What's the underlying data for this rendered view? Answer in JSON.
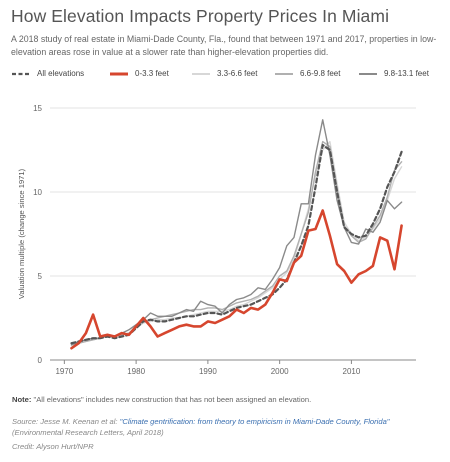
{
  "header": {
    "title": "How Elevation Impacts Property Prices In Miami",
    "subtitle": "A 2018 study of real estate in Miami-Dade County, Fla., found that between 1971 and 2017, properties in low-elevation areas rose in value at a slower rate than higher-elevation properties did."
  },
  "footer": {
    "note_label": "Note:",
    "note_text": " \"All elevations\" includes new construction that has not been assigned an elevation.",
    "source_prefix": "Source: Jesse M. Keenan et al: ",
    "source_link": "\"Climate gentrification: from theory to empiricism in Miami-Dade County, Florida\"",
    "source_suffix": "(Environmental Research Letters, April 2018)",
    "credit": "Credit: Alyson Hurt/NPR"
  },
  "colors": {
    "all": "#555555",
    "e0_3": "#d6462e",
    "e3_6": "#d7d7d7",
    "e6_9": "#b0b0b0",
    "e9_13": "#8a8a8a",
    "grid": "#e3e3e3",
    "axis": "#888888"
  },
  "chart_data": {
    "type": "line",
    "title": "",
    "xlabel": "",
    "ylabel": "Valuation multiple (change since 1971)",
    "xlim": [
      1968,
      2019
    ],
    "ylim": [
      0,
      15
    ],
    "x_ticks": [
      1970,
      1980,
      1990,
      2000,
      2010
    ],
    "y_ticks": [
      0,
      5,
      10,
      15
    ],
    "grid": "horizontal",
    "legend_position": "top",
    "x": [
      1971,
      1972,
      1973,
      1974,
      1975,
      1976,
      1977,
      1978,
      1979,
      1980,
      1981,
      1982,
      1983,
      1984,
      1985,
      1986,
      1987,
      1988,
      1989,
      1990,
      1991,
      1992,
      1993,
      1994,
      1995,
      1996,
      1997,
      1998,
      1999,
      2000,
      2001,
      2002,
      2003,
      2004,
      2005,
      2006,
      2007,
      2008,
      2009,
      2010,
      2011,
      2012,
      2013,
      2014,
      2015,
      2016,
      2017
    ],
    "series": [
      {
        "name": "All elevations",
        "key": "all",
        "style": "dashed",
        "values": [
          1.0,
          1.1,
          1.2,
          1.3,
          1.3,
          1.4,
          1.3,
          1.4,
          1.5,
          1.9,
          2.3,
          2.4,
          2.3,
          2.3,
          2.4,
          2.5,
          2.6,
          2.6,
          2.7,
          2.8,
          2.8,
          2.7,
          2.9,
          3.1,
          3.2,
          3.3,
          3.5,
          3.7,
          3.9,
          4.3,
          4.8,
          5.8,
          6.8,
          8.0,
          10.3,
          12.8,
          12.5,
          10.0,
          7.9,
          7.5,
          7.3,
          7.4,
          8.1,
          9.0,
          10.3,
          11.2,
          12.4
        ]
      },
      {
        "name": "0-3.3 feet",
        "key": "e0_3",
        "style": "solid-thick",
        "values": [
          0.7,
          1.0,
          1.6,
          2.7,
          1.4,
          1.5,
          1.4,
          1.6,
          1.5,
          2.0,
          2.5,
          2.0,
          1.4,
          1.6,
          1.8,
          2.0,
          2.1,
          2.0,
          2.0,
          2.3,
          2.2,
          2.4,
          2.6,
          3.0,
          2.8,
          3.1,
          3.0,
          3.3,
          4.0,
          4.8,
          4.7,
          5.8,
          6.2,
          7.7,
          7.8,
          8.9,
          7.4,
          5.7,
          5.3,
          4.6,
          5.1,
          5.3,
          5.6,
          7.3,
          7.1,
          5.4,
          8.0
        ]
      },
      {
        "name": "3.3-6.6 feet",
        "key": "e3_6",
        "style": "solid",
        "values": [
          0.9,
          1.0,
          1.1,
          1.2,
          1.3,
          1.4,
          1.4,
          1.5,
          1.6,
          1.9,
          2.2,
          2.3,
          2.4,
          2.4,
          2.5,
          2.5,
          2.6,
          2.7,
          2.8,
          2.9,
          2.9,
          2.9,
          3.0,
          3.2,
          3.3,
          3.5,
          3.7,
          4.0,
          4.3,
          4.8,
          5.2,
          6.0,
          7.5,
          9.0,
          11.0,
          12.5,
          13.0,
          10.5,
          8.2,
          7.5,
          7.1,
          7.3,
          7.8,
          8.4,
          9.5,
          10.8,
          11.5
        ]
      },
      {
        "name": "6.6-9.8 feet",
        "key": "e6_9",
        "style": "solid",
        "values": [
          0.9,
          1.0,
          1.1,
          1.2,
          1.3,
          1.4,
          1.4,
          1.5,
          1.6,
          2.0,
          2.3,
          2.4,
          2.5,
          2.6,
          2.7,
          2.8,
          2.9,
          3.0,
          3.0,
          3.1,
          3.1,
          3.0,
          3.2,
          3.4,
          3.5,
          3.6,
          3.8,
          4.1,
          4.4,
          5.0,
          5.3,
          6.2,
          7.5,
          8.8,
          11.2,
          13.0,
          12.7,
          10.2,
          8.0,
          7.4,
          7.0,
          7.2,
          7.9,
          8.6,
          9.7,
          11.3,
          11.8
        ]
      },
      {
        "name": "9.8-13.1 feet",
        "key": "e9_13",
        "style": "solid",
        "values": [
          0.9,
          1.1,
          1.2,
          1.3,
          1.3,
          1.5,
          1.4,
          1.6,
          1.8,
          2.1,
          2.4,
          2.8,
          2.6,
          2.6,
          2.6,
          2.8,
          3.0,
          2.9,
          3.5,
          3.3,
          3.2,
          2.8,
          3.3,
          3.6,
          3.7,
          3.9,
          4.3,
          4.2,
          4.8,
          5.5,
          6.8,
          7.3,
          9.3,
          9.3,
          12.2,
          14.3,
          12.2,
          9.5,
          7.9,
          7.0,
          6.9,
          7.8,
          7.6,
          8.2,
          9.5,
          9.0,
          9.4
        ]
      }
    ]
  }
}
